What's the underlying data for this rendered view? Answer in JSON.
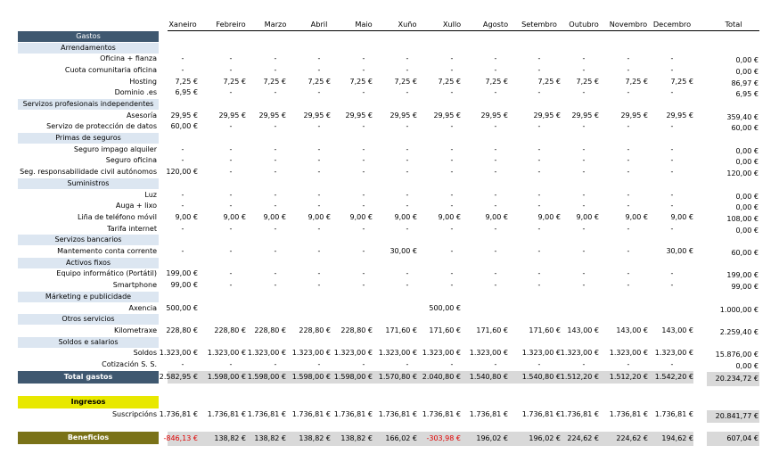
{
  "months": [
    "Xaneiro",
    "Febreiro",
    "Marzo",
    "Abril",
    "Maio",
    "Xuño",
    "Xullo",
    "Agosto",
    "Setembro",
    "Outubro",
    "Novembro",
    "Decembro"
  ],
  "total_header": "Total",
  "colors": {
    "gastos_header": "#3f5870",
    "section_bg": "#dce6f1",
    "ingresos_bg": "#e8e800",
    "beneficios_bg": "#7a7218",
    "grey": "#d9d9d9",
    "negative": "#e00000"
  },
  "gastos_title": "Gastos",
  "rows": [
    {
      "type": "section",
      "label": "Arrendamentos"
    },
    {
      "type": "item",
      "label": "Oficina + fianza",
      "values": [
        "-",
        "-",
        "-",
        "-",
        "-",
        "-",
        "-",
        "-",
        "-",
        "-",
        "-",
        "-"
      ],
      "total": "0,00 €"
    },
    {
      "type": "item",
      "label": "Cuota comunitaria oficina",
      "values": [
        "-",
        "-",
        "-",
        "-",
        "-",
        "-",
        "-",
        "-",
        "-",
        "-",
        "-",
        "-"
      ],
      "total": "0,00 €"
    },
    {
      "type": "item",
      "label": "Hosting",
      "values": [
        "7,25 €",
        "7,25 €",
        "7,25 €",
        "7,25 €",
        "7,25 €",
        "7,25 €",
        "7,25 €",
        "7,25 €",
        "7,25 €",
        "7,25 €",
        "7,25 €",
        "7,25 €"
      ],
      "total": "86,97 €"
    },
    {
      "type": "item",
      "label": "Dominio .es",
      "values": [
        "6,95 €",
        "-",
        "-",
        "-",
        "-",
        "-",
        "-",
        "-",
        "-",
        "-",
        "-",
        "-"
      ],
      "total": "6,95 €"
    },
    {
      "type": "section",
      "label": "Servizos profesionais independentes"
    },
    {
      "type": "item",
      "label": "Asesoría",
      "values": [
        "29,95 €",
        "29,95 €",
        "29,95 €",
        "29,95 €",
        "29,95 €",
        "29,95 €",
        "29,95 €",
        "29,95 €",
        "29,95 €",
        "29,95 €",
        "29,95 €",
        "29,95 €"
      ],
      "total": "359,40 €"
    },
    {
      "type": "item",
      "label": "Servizo de protección de datos",
      "values": [
        "60,00 €",
        "-",
        "-",
        "-",
        "-",
        "-",
        "-",
        "-",
        "-",
        "-",
        "-",
        "-"
      ],
      "total": "60,00 €"
    },
    {
      "type": "section",
      "label": "Primas de seguros"
    },
    {
      "type": "item",
      "label": "Seguro impago alquiler",
      "values": [
        "-",
        "-",
        "-",
        "-",
        "-",
        "-",
        "-",
        "-",
        "-",
        "-",
        "-",
        "-"
      ],
      "total": "0,00 €"
    },
    {
      "type": "item",
      "label": "Seguro oficina",
      "values": [
        "-",
        "-",
        "-",
        "-",
        "-",
        "-",
        "-",
        "-",
        "-",
        "-",
        "-",
        "-"
      ],
      "total": "0,00 €"
    },
    {
      "type": "item",
      "label": "Seg. responsabilidade civil autónomos",
      "values": [
        "120,00 €",
        "-",
        "-",
        "-",
        "-",
        "-",
        "-",
        "-",
        "-",
        "-",
        "-",
        "-"
      ],
      "total": "120,00 €"
    },
    {
      "type": "section",
      "label": "Suministros"
    },
    {
      "type": "item",
      "label": "Luz",
      "values": [
        "-",
        "-",
        "-",
        "-",
        "-",
        "-",
        "-",
        "-",
        "-",
        "-",
        "-",
        "-"
      ],
      "total": "0,00 €"
    },
    {
      "type": "item",
      "label": "Auga + lixo",
      "values": [
        "-",
        "-",
        "-",
        "-",
        "-",
        "-",
        "-",
        "-",
        "-",
        "-",
        "-",
        "-"
      ],
      "total": "0,00 €"
    },
    {
      "type": "item",
      "label": "Liña de teléfono móvil",
      "values": [
        "9,00 €",
        "9,00 €",
        "9,00 €",
        "9,00 €",
        "9,00 €",
        "9,00 €",
        "9,00 €",
        "9,00 €",
        "9,00 €",
        "9,00 €",
        "9,00 €",
        "9,00 €"
      ],
      "total": "108,00 €"
    },
    {
      "type": "item",
      "label": "Tarifa internet",
      "values": [
        "-",
        "-",
        "-",
        "-",
        "-",
        "-",
        "-",
        "-",
        "-",
        "-",
        "-",
        "-"
      ],
      "total": "0,00 €"
    },
    {
      "type": "section",
      "label": "Servizos bancarios"
    },
    {
      "type": "item",
      "label": "Mantemento conta corrente",
      "values": [
        "-",
        "-",
        "-",
        "-",
        "-",
        "30,00 €",
        "-",
        "-",
        "-",
        "-",
        "-",
        "30,00 €"
      ],
      "total": "60,00 €"
    },
    {
      "type": "section",
      "label": "Activos fixos"
    },
    {
      "type": "item",
      "label": "Equipo informático (Portátil)",
      "values": [
        "199,00 €",
        "-",
        "-",
        "-",
        "-",
        "-",
        "-",
        "-",
        "-",
        "-",
        "-",
        "-"
      ],
      "total": "199,00 €"
    },
    {
      "type": "item",
      "label": "Smartphone",
      "values": [
        "99,00 €",
        "-",
        "-",
        "-",
        "-",
        "-",
        "-",
        "-",
        "-",
        "-",
        "-",
        "-"
      ],
      "total": "99,00 €"
    },
    {
      "type": "section",
      "label": "Márketing e publicidade"
    },
    {
      "type": "item",
      "label": "Axencia",
      "values": [
        "500,00 €",
        "",
        "",
        "",
        "",
        "",
        "500,00 €",
        "",
        "",
        "",
        "",
        ""
      ],
      "total": "1.000,00 €"
    },
    {
      "type": "section",
      "label": "Otros servicios"
    },
    {
      "type": "item",
      "label": "Kilometraxe",
      "values": [
        "228,80 €",
        "228,80 €",
        "228,80 €",
        "228,80 €",
        "228,80 €",
        "171,60 €",
        "171,60 €",
        "171,60 €",
        "171,60 €",
        "143,00 €",
        "143,00 €",
        "143,00 €"
      ],
      "total": "2.259,40 €"
    },
    {
      "type": "section",
      "label": "Soldos e salarios"
    },
    {
      "type": "item",
      "label": "Soldos",
      "values": [
        "1.323,00 €",
        "1.323,00 €",
        "1.323,00 €",
        "1.323,00 €",
        "1.323,00 €",
        "1.323,00 €",
        "1.323,00 €",
        "1.323,00 €",
        "1.323,00 €",
        "1.323,00 €",
        "1.323,00 €",
        "1.323,00 €"
      ],
      "total": "15.876,00 €"
    },
    {
      "type": "item",
      "label": "Cotización S. S.",
      "values": [
        "-",
        "-",
        "-",
        "-",
        "-",
        "-",
        "-",
        "-",
        "-",
        "-",
        "-",
        "-"
      ],
      "total": "0,00 €"
    }
  ],
  "total_gastos": {
    "label": "Total gastos",
    "values": [
      "2.582,95 €",
      "1.598,00 €",
      "1.598,00 €",
      "1.598,00 €",
      "1.598,00 €",
      "1.570,80 €",
      "2.040,80 €",
      "1.540,80 €",
      "1.540,80 €",
      "1.512,20 €",
      "1.512,20 €",
      "1.542,20 €"
    ],
    "total": "20.234,72 €"
  },
  "ingresos": {
    "label": "Ingresos",
    "row_label": "Suscripcións",
    "values": [
      "1.736,81 €",
      "1.736,81 €",
      "1.736,81 €",
      "1.736,81 €",
      "1.736,81 €",
      "1.736,81 €",
      "1.736,81 €",
      "1.736,81 €",
      "1.736,81 €",
      "1.736,81 €",
      "1.736,81 €",
      "1.736,81 €"
    ],
    "total": "20.841,77 €"
  },
  "beneficios": {
    "label": "Beneficios",
    "values": [
      "-846,13 €",
      "138,82 €",
      "138,82 €",
      "138,82 €",
      "138,82 €",
      "166,02 €",
      "-303,98 €",
      "196,02 €",
      "196,02 €",
      "224,62 €",
      "224,62 €",
      "194,62 €"
    ],
    "total": "607,04 €"
  }
}
